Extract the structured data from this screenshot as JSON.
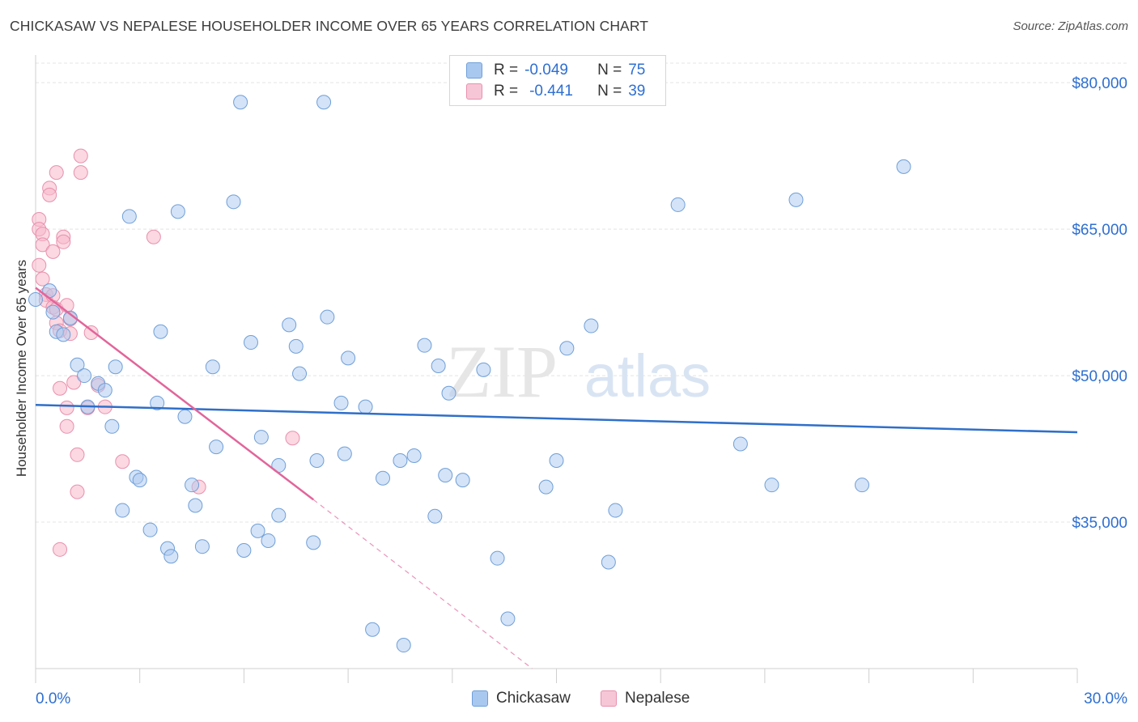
{
  "header": {
    "title": "CHICKASAW VS NEPALESE HOUSEHOLDER INCOME OVER 65 YEARS CORRELATION CHART",
    "source": "Source: ZipAtlas.com"
  },
  "legend": {
    "r_label": "R =",
    "n_label": "N =",
    "rows": [
      {
        "r": "-0.049",
        "n": "75"
      },
      {
        "r": "-0.441",
        "n": "39"
      }
    ]
  },
  "watermark": {
    "part1": "ZIP",
    "part2": "atlas"
  },
  "colors": {
    "chickasaw_fill": "#a9c8f0",
    "chickasaw_stroke": "#6f9fd8",
    "chickasaw_line": "#2f6fc9",
    "nepalese_fill": "#f7b8cb",
    "nepalese_stroke": "#e890ad",
    "nepalese_line": "#e2659a",
    "axis_value": "#2e6fd1",
    "grid": "#e4e4e4"
  },
  "chart_data": {
    "type": "scatter",
    "title": "CHICKASAW VS NEPALESE HOUSEHOLDER INCOME OVER 65 YEARS CORRELATION CHART",
    "xlabel": "",
    "ylabel": "Householder Income Over 65 years",
    "xlim": [
      0,
      30
    ],
    "ylim": [
      20000,
      82000
    ],
    "x_tick_labels": [
      "0.0%",
      "30.0%"
    ],
    "y_ticks": [
      35000,
      50000,
      65000,
      80000
    ],
    "y_tick_labels": [
      "$35,000",
      "$50,000",
      "$65,000",
      "$80,000"
    ],
    "grid": true,
    "legend_position": "bottom-center",
    "series": [
      {
        "name": "Chickasaw",
        "r": -0.049,
        "n": 75,
        "trend": {
          "x": [
            0,
            30
          ],
          "y": [
            47000,
            44200
          ]
        },
        "points": [
          [
            0.0,
            57.8
          ],
          [
            0.4,
            58.7
          ],
          [
            0.5,
            56.5
          ],
          [
            0.6,
            54.5
          ],
          [
            0.8,
            54.2
          ],
          [
            1.0,
            55.9
          ],
          [
            1.2,
            51.1
          ],
          [
            1.4,
            50.0
          ],
          [
            1.5,
            46.8
          ],
          [
            1.8,
            49.2
          ],
          [
            2.0,
            48.5
          ],
          [
            2.2,
            44.8
          ],
          [
            2.3,
            50.9
          ],
          [
            2.5,
            36.2
          ],
          [
            2.7,
            66.3
          ],
          [
            2.9,
            39.6
          ],
          [
            3.0,
            39.3
          ],
          [
            3.3,
            34.2
          ],
          [
            3.5,
            47.2
          ],
          [
            3.6,
            54.5
          ],
          [
            3.8,
            32.3
          ],
          [
            3.9,
            31.5
          ],
          [
            4.1,
            66.8
          ],
          [
            4.3,
            45.8
          ],
          [
            4.5,
            38.8
          ],
          [
            4.6,
            36.7
          ],
          [
            4.8,
            32.5
          ],
          [
            5.1,
            50.9
          ],
          [
            5.2,
            42.7
          ],
          [
            5.7,
            67.8
          ],
          [
            5.9,
            78.0
          ],
          [
            6.0,
            32.1
          ],
          [
            6.2,
            53.4
          ],
          [
            6.4,
            34.1
          ],
          [
            6.5,
            43.7
          ],
          [
            6.7,
            33.1
          ],
          [
            7.0,
            40.8
          ],
          [
            7.0,
            35.7
          ],
          [
            7.3,
            55.2
          ],
          [
            7.5,
            53.0
          ],
          [
            7.6,
            50.2
          ],
          [
            8.0,
            32.9
          ],
          [
            8.1,
            41.3
          ],
          [
            8.3,
            78.0
          ],
          [
            8.4,
            56.0
          ],
          [
            8.8,
            47.2
          ],
          [
            8.9,
            42.0
          ],
          [
            9.0,
            51.8
          ],
          [
            9.5,
            46.8
          ],
          [
            9.7,
            24.0
          ],
          [
            10.0,
            39.5
          ],
          [
            10.5,
            41.3
          ],
          [
            10.6,
            22.4
          ],
          [
            10.9,
            41.8
          ],
          [
            11.2,
            53.1
          ],
          [
            11.5,
            35.6
          ],
          [
            11.6,
            51.0
          ],
          [
            11.8,
            39.8
          ],
          [
            11.9,
            48.2
          ],
          [
            12.3,
            39.3
          ],
          [
            12.9,
            50.6
          ],
          [
            13.3,
            31.3
          ],
          [
            13.6,
            25.1
          ],
          [
            14.7,
            38.6
          ],
          [
            15.0,
            41.3
          ],
          [
            15.3,
            52.8
          ],
          [
            16.0,
            55.1
          ],
          [
            16.5,
            30.9
          ],
          [
            16.7,
            36.2
          ],
          [
            18.5,
            67.5
          ],
          [
            20.3,
            43.0
          ],
          [
            21.2,
            38.8
          ],
          [
            21.9,
            68.0
          ],
          [
            23.8,
            38.8
          ],
          [
            25.0,
            71.4
          ]
        ]
      },
      {
        "name": "Nepalese",
        "r": -0.441,
        "n": 39,
        "trend": {
          "x": [
            0,
            8.0
          ],
          "y": [
            59000,
            37300
          ]
        },
        "trend_dashed": {
          "x": [
            8.0,
            14.3
          ],
          "y": [
            37300,
            20000
          ]
        },
        "points": [
          [
            0.1,
            66.0
          ],
          [
            0.1,
            65.0
          ],
          [
            0.1,
            61.3
          ],
          [
            0.2,
            64.5
          ],
          [
            0.2,
            63.4
          ],
          [
            0.2,
            59.9
          ],
          [
            0.3,
            58.3
          ],
          [
            0.3,
            57.7
          ],
          [
            0.4,
            69.2
          ],
          [
            0.4,
            68.5
          ],
          [
            0.5,
            62.7
          ],
          [
            0.5,
            58.2
          ],
          [
            0.5,
            57.0
          ],
          [
            0.6,
            56.8
          ],
          [
            0.6,
            55.4
          ],
          [
            0.6,
            70.8
          ],
          [
            0.7,
            32.2
          ],
          [
            0.7,
            54.6
          ],
          [
            0.7,
            48.7
          ],
          [
            0.8,
            64.2
          ],
          [
            0.8,
            63.7
          ],
          [
            0.9,
            57.2
          ],
          [
            0.9,
            46.7
          ],
          [
            0.9,
            44.8
          ],
          [
            1.0,
            55.8
          ],
          [
            1.0,
            54.3
          ],
          [
            1.1,
            49.3
          ],
          [
            1.2,
            41.9
          ],
          [
            1.2,
            38.1
          ],
          [
            1.3,
            70.8
          ],
          [
            1.3,
            72.5
          ],
          [
            1.5,
            46.7
          ],
          [
            1.6,
            54.4
          ],
          [
            1.8,
            49.0
          ],
          [
            2.0,
            46.8
          ],
          [
            2.5,
            41.2
          ],
          [
            3.4,
            64.2
          ],
          [
            4.7,
            38.6
          ],
          [
            7.4,
            43.6
          ]
        ]
      }
    ]
  },
  "bottom_legend": [
    {
      "label": "Chickasaw"
    },
    {
      "label": "Nepalese"
    }
  ]
}
